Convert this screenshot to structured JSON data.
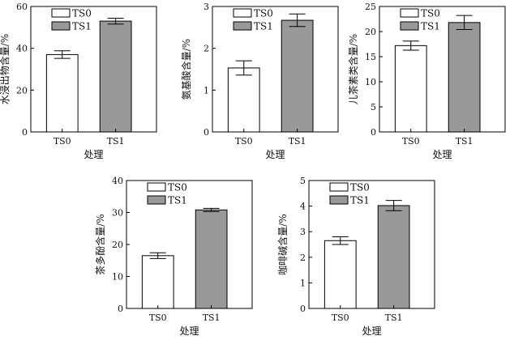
{
  "chart_data": [
    {
      "type": "bar",
      "title": "",
      "xlabel": "处理",
      "ylabel": "水浸出物含量/%",
      "categories": [
        "TS0",
        "TS1"
      ],
      "values": [
        37.0,
        53.0
      ],
      "errors": [
        1.8,
        1.4
      ],
      "ylim": [
        0,
        60
      ],
      "yticks": [
        "0",
        "20",
        "40",
        "60"
      ],
      "legend": [
        "TS0",
        "TS1"
      ],
      "legend_position": "top-left",
      "colors": [
        "#ffffff",
        "#999999"
      ]
    },
    {
      "type": "bar",
      "title": "",
      "xlabel": "处理",
      "ylabel": "氨基酸含量/%",
      "categories": [
        "TS0",
        "TS1"
      ],
      "values": [
        1.53,
        2.67
      ],
      "errors": [
        0.17,
        0.15
      ],
      "ylim": [
        0,
        3
      ],
      "yticks": [
        "0",
        "1",
        "2",
        "3"
      ],
      "legend": [
        "TS0",
        "TS1"
      ],
      "legend_position": "top-left",
      "colors": [
        "#ffffff",
        "#999999"
      ]
    },
    {
      "type": "bar",
      "title": "",
      "xlabel": "处理",
      "ylabel": "儿茶素类含量/%",
      "categories": [
        "TS0",
        "TS1"
      ],
      "values": [
        17.2,
        21.8
      ],
      "errors": [
        0.9,
        1.4
      ],
      "ylim": [
        0,
        25
      ],
      "yticks": [
        "0",
        "5",
        "10",
        "15",
        "20",
        "25"
      ],
      "legend": [
        "TS0",
        "TS1"
      ],
      "legend_position": "top-left",
      "colors": [
        "#ffffff",
        "#999999"
      ]
    },
    {
      "type": "bar",
      "title": "",
      "xlabel": "处理",
      "ylabel": "茶多酚含量/%",
      "categories": [
        "TS0",
        "TS1"
      ],
      "values": [
        16.5,
        30.8
      ],
      "errors": [
        0.9,
        0.5
      ],
      "ylim": [
        0,
        40
      ],
      "yticks": [
        "0",
        "10",
        "20",
        "30",
        "40"
      ],
      "legend": [
        "TS0",
        "TS1"
      ],
      "legend_position": "top-left",
      "colors": [
        "#ffffff",
        "#999999"
      ]
    },
    {
      "type": "bar",
      "title": "",
      "xlabel": "处理",
      "ylabel": "咖啡碱含量/%",
      "categories": [
        "TS0",
        "TS1"
      ],
      "values": [
        2.65,
        4.02
      ],
      "errors": [
        0.15,
        0.2
      ],
      "ylim": [
        0,
        5
      ],
      "yticks": [
        "0",
        "1",
        "2",
        "3",
        "4",
        "5"
      ],
      "legend": [
        "TS0",
        "TS1"
      ],
      "legend_position": "top-left",
      "colors": [
        "#ffffff",
        "#999999"
      ]
    }
  ]
}
